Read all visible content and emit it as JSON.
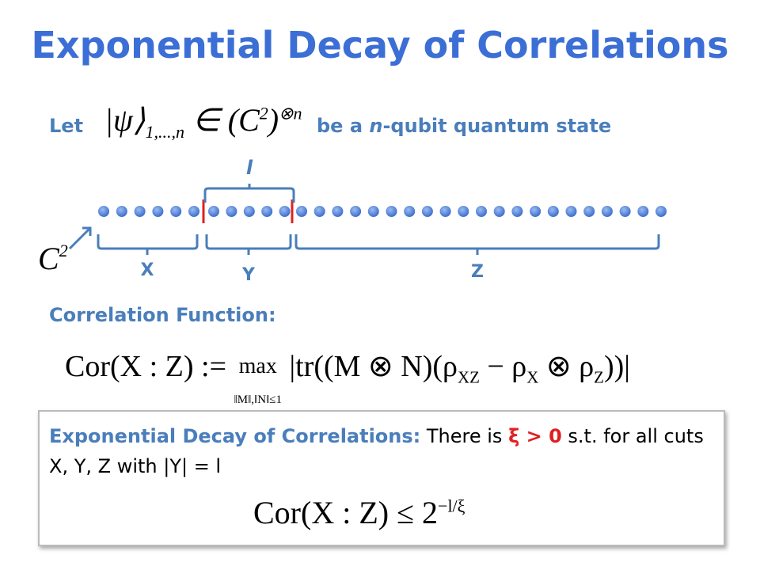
{
  "header": {
    "title": "Exponential Decay of Correlations"
  },
  "intro": {
    "lead": "Let",
    "state": {
      "ket": "|ψ⟩",
      "sub": "1,...,n",
      "rel": "∈",
      "space": "(C",
      "space_sup": "2",
      "close": ")",
      "power": "⊗n"
    },
    "tail_a": "be a",
    "tail_n": "n",
    "tail_b": "-qubit quantum state"
  },
  "diagram": {
    "length_label": "l",
    "site_label": "C",
    "site_sup": "2",
    "cuts": [
      "X",
      "Y",
      "Z"
    ]
  },
  "correlation": {
    "label": "Correlation Function:",
    "formula": {
      "lhs": "Cor(X : Z) :=",
      "op": "max",
      "op_sub": "‖M‖,‖N‖≤1",
      "a": "|tr((M ⊗ N)(ρ",
      "s1": "XZ",
      "b": " − ρ",
      "s2": "X",
      "c": " ⊗ ρ",
      "s3": "Z",
      "d": "))|"
    }
  },
  "box": {
    "heading": "Exponential Decay of Correlations:",
    "text_a": " There is ",
    "highlight": "ξ > 0",
    "text_b": " s.t. for all cuts X, Y, Z with |Y| = l",
    "formula": {
      "lhs": "Cor(X : Z) ≤ 2",
      "exp": "−l/ξ"
    }
  }
}
